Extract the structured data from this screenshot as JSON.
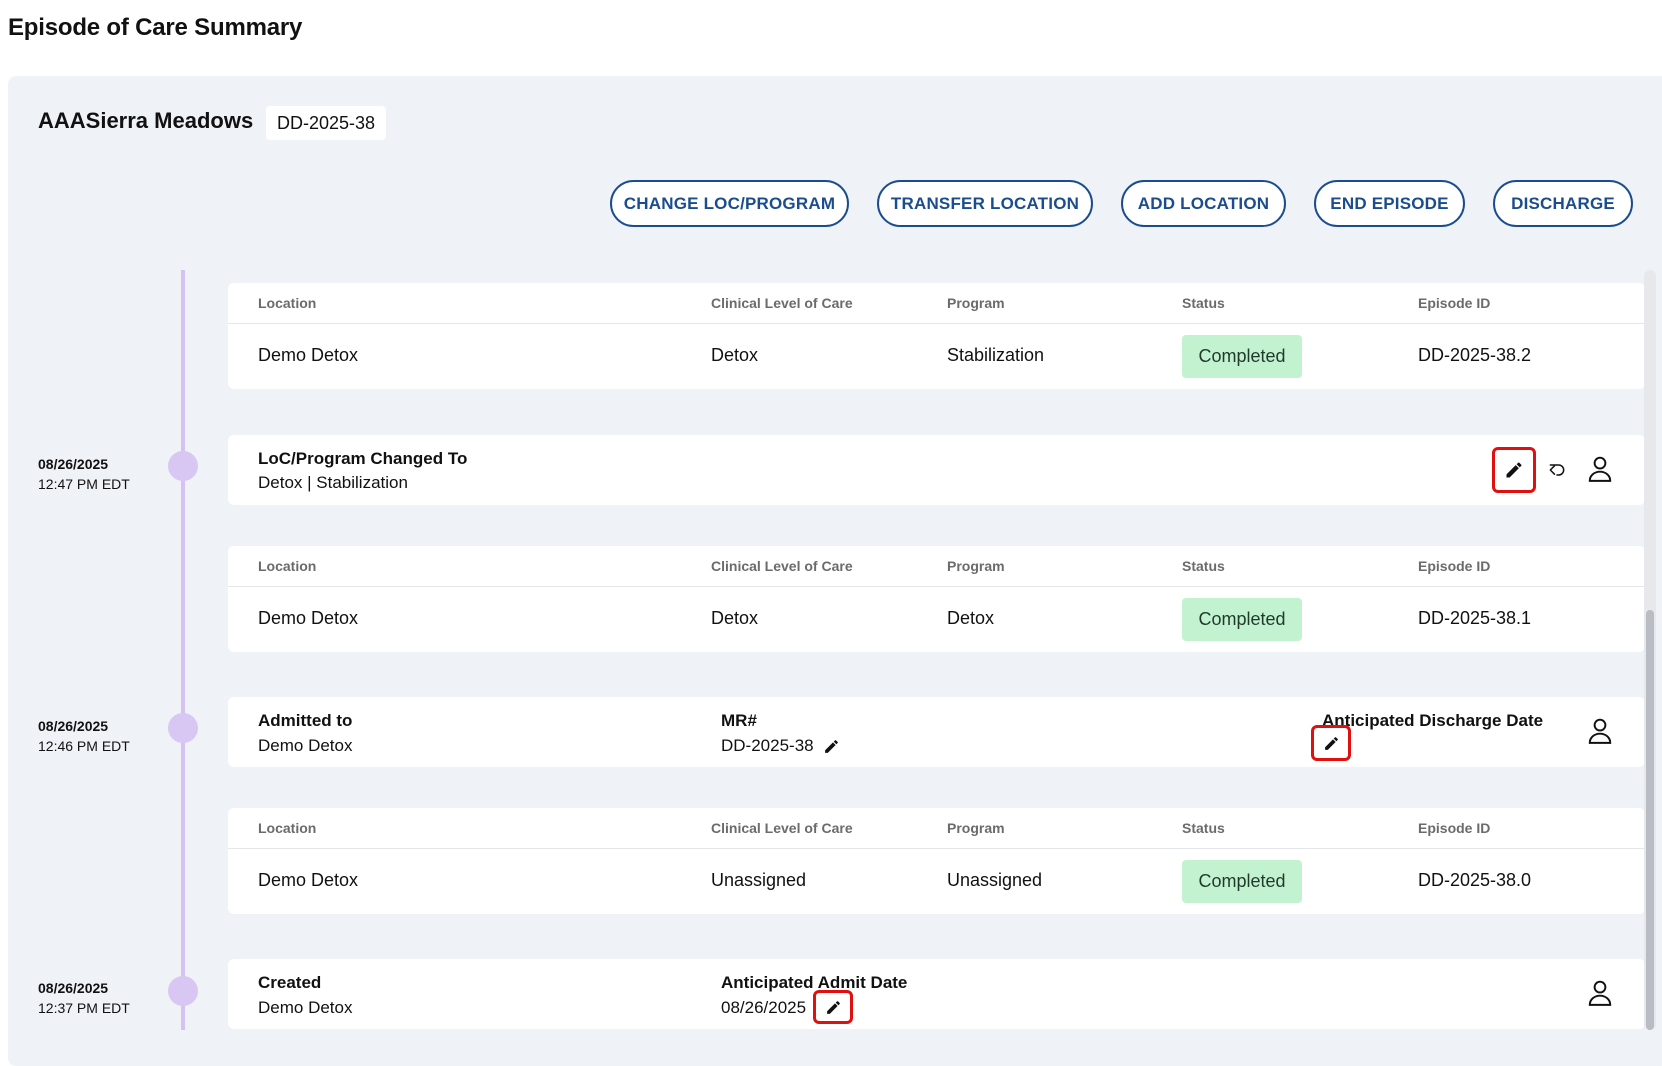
{
  "page_title": "Episode of Care Summary",
  "facility": {
    "name": "AAASierra Meadows",
    "episode_chip": "DD-2025-38"
  },
  "actions": [
    {
      "label": "CHANGE LOC/PROGRAM"
    },
    {
      "label": "TRANSFER LOCATION"
    },
    {
      "label": "ADD LOCATION"
    },
    {
      "label": "END EPISODE"
    },
    {
      "label": "DISCHARGE"
    }
  ],
  "table_headers": {
    "location": "Location",
    "clinical_level": "Clinical Level of Care",
    "program": "Program",
    "status": "Status",
    "episode_id": "Episode ID"
  },
  "tables": [
    {
      "location": "Demo Detox",
      "clinical_level": "Detox",
      "program": "Stabilization",
      "status": "Completed",
      "episode_id": "DD-2025-38.2"
    },
    {
      "location": "Demo Detox",
      "clinical_level": "Detox",
      "program": "Detox",
      "status": "Completed",
      "episode_id": "DD-2025-38.1"
    },
    {
      "location": "Demo Detox",
      "clinical_level": "Unassigned",
      "program": "Unassigned",
      "status": "Completed",
      "episode_id": "DD-2025-38.0"
    }
  ],
  "events": [
    {
      "date": "08/26/2025",
      "time": "12:47 PM EDT",
      "title": "LoC/Program Changed To",
      "subtitle": "Detox | Stabilization"
    },
    {
      "date": "08/26/2025",
      "time": "12:46 PM EDT",
      "title": "Admitted to",
      "subtitle": "Demo Detox",
      "mr_label": "MR#",
      "mr_value": "DD-2025-38",
      "discharge_label": "Anticipated Discharge Date"
    },
    {
      "date": "08/26/2025",
      "time": "12:37 PM EDT",
      "title": "Created",
      "subtitle": "Demo Detox",
      "admit_label": "Anticipated Admit Date",
      "admit_value": "08/26/2025"
    }
  ],
  "icons": {
    "edit": "pencil-icon",
    "undo": "undo-icon",
    "user": "user-icon"
  },
  "colors": {
    "accent": "#1b4d8e",
    "status_completed_bg": "#c3f2d1",
    "timeline": "#d6c2f0",
    "panel_bg": "#eff2f7",
    "highlight": "#e01010"
  }
}
